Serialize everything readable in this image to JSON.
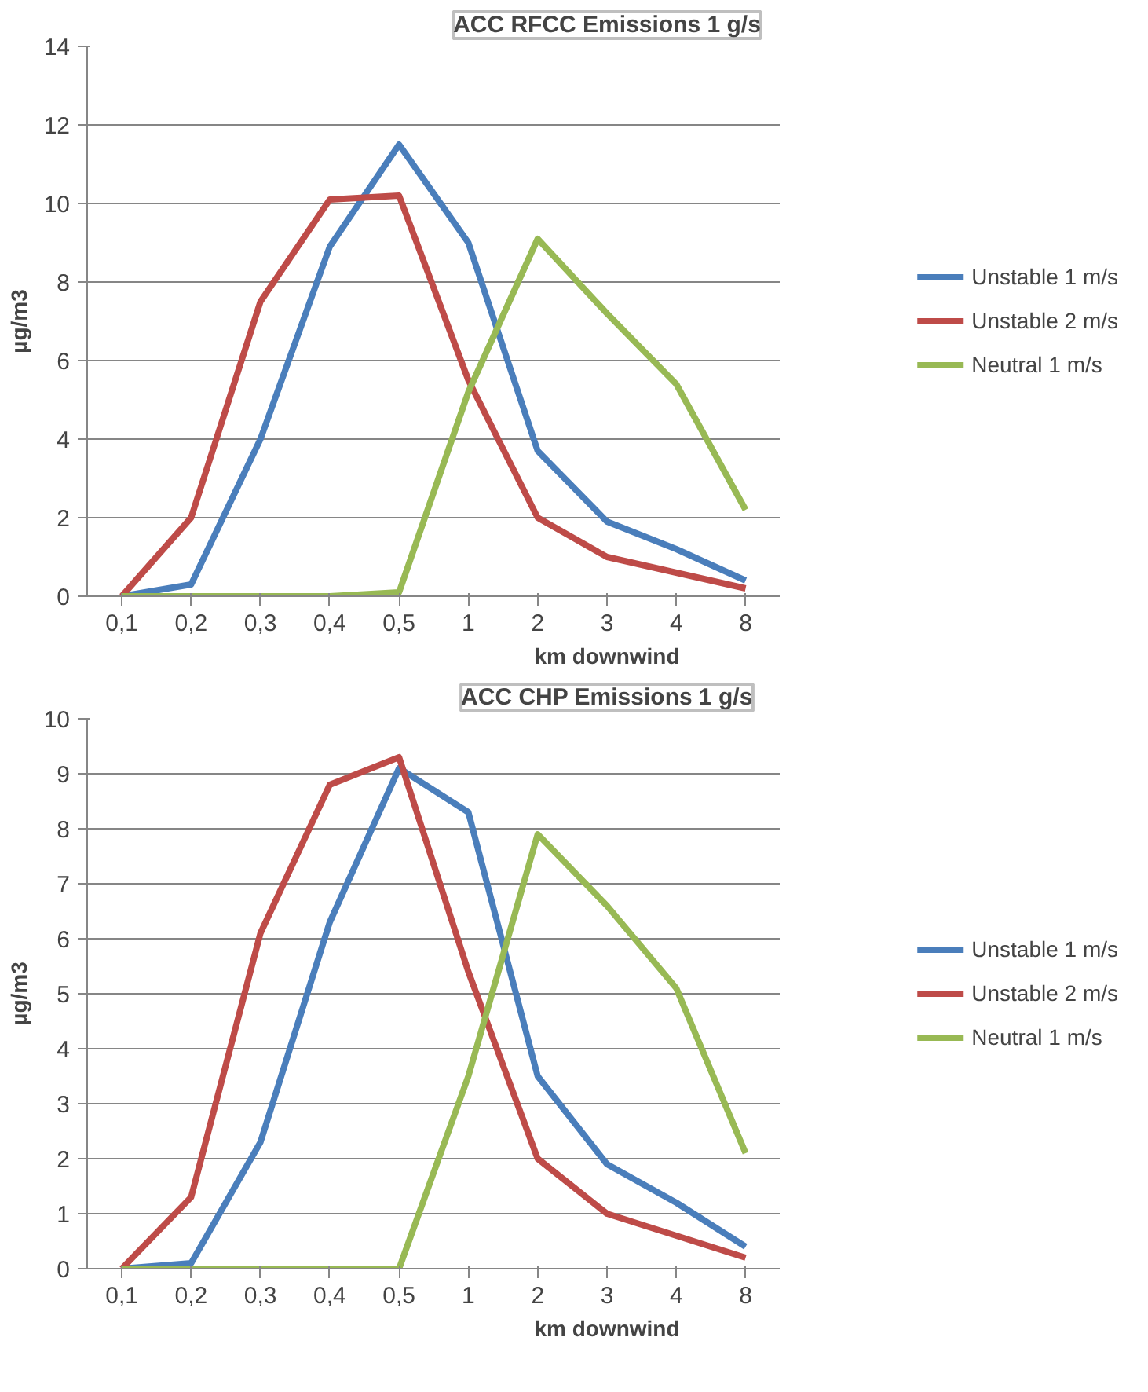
{
  "chart_data": [
    {
      "type": "line",
      "title": "ACC RFCC Emissions 1 g/s",
      "xlabel": "km downwind",
      "ylabel": "µg/m3",
      "categories": [
        "0,1",
        "0,2",
        "0,3",
        "0,4",
        "0,5",
        "1",
        "2",
        "3",
        "4",
        "8"
      ],
      "ylim": [
        0,
        14
      ],
      "yticks": [
        0,
        2,
        4,
        6,
        8,
        10,
        12,
        14
      ],
      "grid": "y",
      "legend": "right",
      "series": [
        {
          "name": "Unstable 1 m/s",
          "color": "#4a7ebb",
          "values": [
            0,
            0.3,
            4,
            8.9,
            11.5,
            9,
            3.7,
            1.9,
            1.2,
            0.4
          ]
        },
        {
          "name": "Unstable 2 m/s",
          "color": "#be4b48",
          "values": [
            0,
            2,
            7.5,
            10.1,
            10.2,
            5.5,
            2,
            1,
            0.6,
            0.2
          ]
        },
        {
          "name": "Neutral 1 m/s",
          "color": "#98b954",
          "values": [
            0,
            0,
            0,
            0,
            0.1,
            5.2,
            9.1,
            7.2,
            5.4,
            2.2
          ]
        }
      ]
    },
    {
      "type": "line",
      "title": "ACC CHP Emissions 1 g/s",
      "xlabel": "km downwind",
      "ylabel": "µg/m3",
      "categories": [
        "0,1",
        "0,2",
        "0,3",
        "0,4",
        "0,5",
        "1",
        "2",
        "3",
        "4",
        "8"
      ],
      "ylim": [
        0,
        10
      ],
      "yticks": [
        0,
        1,
        2,
        3,
        4,
        5,
        6,
        7,
        8,
        9,
        10
      ],
      "grid": "y",
      "legend": "right",
      "series": [
        {
          "name": "Unstable 1 m/s",
          "color": "#4a7ebb",
          "values": [
            0,
            0.1,
            2.3,
            6.3,
            9.1,
            8.3,
            3.5,
            1.9,
            1.2,
            0.4
          ]
        },
        {
          "name": "Unstable 2 m/s",
          "color": "#be4b48",
          "values": [
            0,
            1.3,
            6.1,
            8.8,
            9.3,
            5.4,
            2,
            1,
            0.6,
            0.2
          ]
        },
        {
          "name": "Neutral 1 m/s",
          "color": "#98b954",
          "values": [
            0,
            0,
            0,
            0,
            0,
            3.5,
            7.9,
            6.6,
            5.1,
            2.1
          ]
        }
      ]
    }
  ]
}
